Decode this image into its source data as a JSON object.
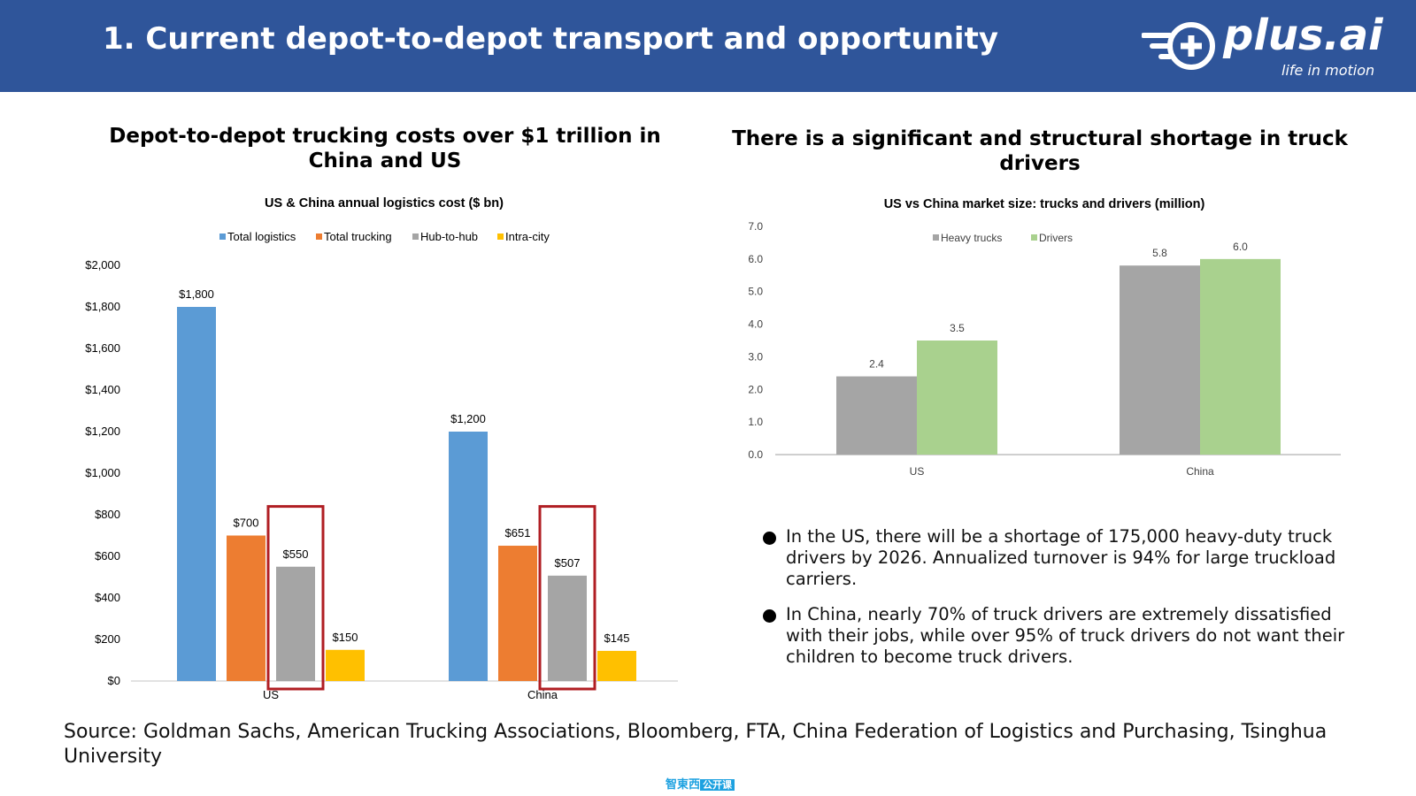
{
  "header": {
    "title": "1. Current depot-to-depot transport and opportunity",
    "logo_text": "plus.ai",
    "logo_tagline": "life in motion"
  },
  "left": {
    "heading": "Depot-to-depot trucking costs over $1 trillion in China and US"
  },
  "right": {
    "heading": "There is a significant and structural shortage in truck drivers",
    "bullets": [
      "In the US, there will be a shortage of 175,000 heavy-duty truck drivers by 2026. Annualized turnover is 94% for large truckload carriers.",
      "In China, nearly 70% of truck drivers are extremely dissatisfied with their jobs, while over 95% of truck drivers do not want their children to become truck drivers."
    ]
  },
  "footer": {
    "source": "Source: Goldman Sachs, American Trucking Associations, Bloomberg, FTA, China Federation of Logistics and Purchasing, Tsinghua University",
    "watermark_a": "智東西",
    "watermark_b": "公开课"
  },
  "colors": {
    "header_bg": "#2f559a",
    "blue": "#5b9bd5",
    "orange": "#ed7d31",
    "gray": "#a5a5a5",
    "yellow": "#ffc000",
    "green": "#a9d18e",
    "highlight": "#b01e23"
  },
  "chart_data": [
    {
      "type": "bar",
      "title": "US & China annual logistics cost ($ bn)",
      "categories": [
        "US",
        "China"
      ],
      "series": [
        {
          "name": "Total logistics",
          "color": "#5b9bd5",
          "values": [
            1800,
            1200
          ],
          "labels": [
            "$1,800",
            "$1,200"
          ]
        },
        {
          "name": "Total trucking",
          "color": "#ed7d31",
          "values": [
            700,
            651
          ],
          "labels": [
            "$700",
            "$651"
          ]
        },
        {
          "name": "Hub-to-hub",
          "color": "#a5a5a5",
          "values": [
            550,
            507
          ],
          "labels": [
            "$550",
            "$507"
          ]
        },
        {
          "name": "Intra-city",
          "color": "#ffc000",
          "values": [
            150,
            145
          ],
          "labels": [
            "$150",
            "$145"
          ]
        }
      ],
      "highlighted_series": "Hub-to-hub",
      "ylim": [
        0,
        2000
      ],
      "yticks": [
        0,
        200,
        400,
        600,
        800,
        1000,
        1200,
        1400,
        1600,
        1800,
        2000
      ],
      "ytick_labels": [
        "$0",
        "$200",
        "$400",
        "$600",
        "$800",
        "$1,000",
        "$1,200",
        "$1,400",
        "$1,600",
        "$1,800",
        "$2,000"
      ],
      "legend_position": "top"
    },
    {
      "type": "bar",
      "title": "US vs China market size: trucks and drivers (million)",
      "categories": [
        "US",
        "China"
      ],
      "series": [
        {
          "name": "Heavy trucks",
          "color": "#a5a5a5",
          "values": [
            2.4,
            5.8
          ],
          "labels": [
            "2.4",
            "5.8"
          ]
        },
        {
          "name": "Drivers",
          "color": "#a9d18e",
          "values": [
            3.5,
            6.0
          ],
          "labels": [
            "3.5",
            "6.0"
          ]
        }
      ],
      "ylim": [
        0,
        7
      ],
      "yticks": [
        0,
        1,
        2,
        3,
        4,
        5,
        6,
        7
      ],
      "ytick_labels": [
        "0.0",
        "1.0",
        "2.0",
        "3.0",
        "4.0",
        "5.0",
        "6.0",
        "7.0"
      ],
      "legend_position": "top"
    }
  ]
}
